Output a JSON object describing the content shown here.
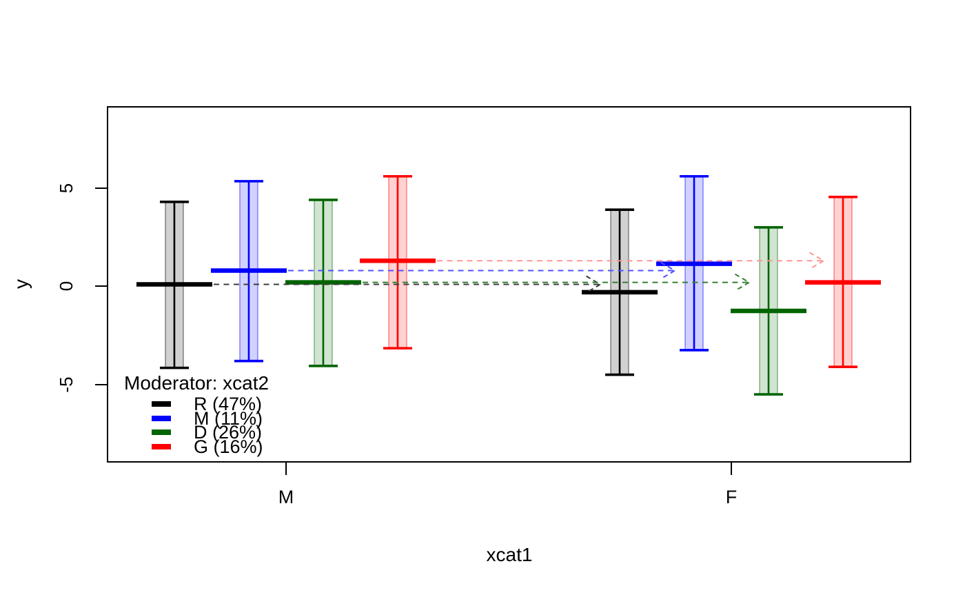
{
  "figure": {
    "background": "#ffffff",
    "xlabel": "xcat1",
    "ylabel": "y"
  },
  "legend": {
    "title": "Moderator: xcat2",
    "entries": [
      {
        "label": "R (47%)",
        "color": "#000000"
      },
      {
        "label": "M (11%)",
        "color": "#0000ff"
      },
      {
        "label": "D (26%)",
        "color": "#006400"
      },
      {
        "label": "G (16%)",
        "color": "#ff0000"
      }
    ]
  },
  "chart_data": {
    "type": "grouped_interval_means",
    "title": "",
    "xlabel": "xcat1",
    "ylabel": "y",
    "x_categories": [
      "M",
      "F"
    ],
    "yticks": [
      5,
      0,
      -5
    ],
    "ylim": [
      -8.9,
      9.1
    ],
    "grid": false,
    "legend_position": "inside-bottom-left",
    "moderator_title": "Moderator: xcat2",
    "series": [
      {
        "name": "R (47%)",
        "level": "R",
        "color": "#000000",
        "arrow_color": "#3c3c3c",
        "points": [
          {
            "x": "M",
            "mean": 0.1,
            "lo": -4.15,
            "hi": 4.3
          },
          {
            "x": "F",
            "mean": -0.3,
            "lo": -4.5,
            "hi": 3.9
          }
        ]
      },
      {
        "name": "M (11%)",
        "level": "M",
        "color": "#0000ff",
        "arrow_color": "#5050ff",
        "points": [
          {
            "x": "M",
            "mean": 0.8,
            "lo": -3.8,
            "hi": 5.35
          },
          {
            "x": "F",
            "mean": 1.15,
            "lo": -3.25,
            "hi": 5.6
          }
        ]
      },
      {
        "name": "D (26%)",
        "level": "D",
        "color": "#006400",
        "arrow_color": "#338033",
        "points": [
          {
            "x": "M",
            "mean": 0.2,
            "lo": -4.05,
            "hi": 4.4
          },
          {
            "x": "F",
            "mean": -1.25,
            "lo": -5.5,
            "hi": 3.0
          }
        ]
      },
      {
        "name": "G (16%)",
        "level": "G",
        "color": "#ff0000",
        "arrow_color": "#ff9595",
        "points": [
          {
            "x": "M",
            "mean": 1.3,
            "lo": -3.15,
            "hi": 5.6
          },
          {
            "x": "F",
            "mean": 0.2,
            "lo": -4.1,
            "hi": 4.55
          }
        ]
      }
    ],
    "arrows": [
      {
        "level": "R",
        "from": "M",
        "to": "F",
        "y": 0.1
      },
      {
        "level": "M",
        "from": "M",
        "to": "F",
        "y": 0.8
      },
      {
        "level": "D",
        "from": "M",
        "to": "F",
        "y": 0.2
      },
      {
        "level": "G",
        "from": "M",
        "to": "F",
        "y": 1.3
      }
    ]
  }
}
